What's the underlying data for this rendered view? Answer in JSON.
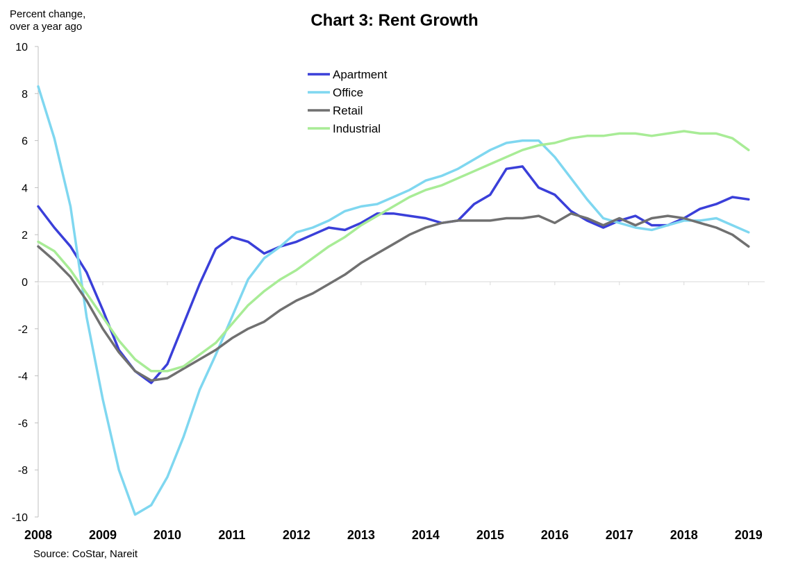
{
  "chart_data": {
    "type": "line",
    "title": "Chart 3: Rent Growth",
    "ylabel": "Percent change,\nover a year ago",
    "xlabel": "",
    "source": "Source: CoStar, Nareit",
    "ylim": [
      -10,
      10
    ],
    "yticks": [
      10,
      8,
      6,
      4,
      2,
      0,
      -2,
      -4,
      -6,
      -8,
      -10
    ],
    "x_range": [
      2008,
      2019.25
    ],
    "x_tick_labels": [
      "2008",
      "2009",
      "2010",
      "2011",
      "2012",
      "2013",
      "2014",
      "2015",
      "2016",
      "2017",
      "2018",
      "2019"
    ],
    "legend_position": "top-center",
    "grid": false,
    "x": [
      2008.0,
      2008.25,
      2008.5,
      2008.75,
      2009.0,
      2009.25,
      2009.5,
      2009.75,
      2010.0,
      2010.25,
      2010.5,
      2010.75,
      2011.0,
      2011.25,
      2011.5,
      2011.75,
      2012.0,
      2012.25,
      2012.5,
      2012.75,
      2013.0,
      2013.25,
      2013.5,
      2013.75,
      2014.0,
      2014.25,
      2014.5,
      2014.75,
      2015.0,
      2015.25,
      2015.5,
      2015.75,
      2016.0,
      2016.25,
      2016.5,
      2016.75,
      2017.0,
      2017.25,
      2017.5,
      2017.75,
      2018.0,
      2018.25,
      2018.5,
      2018.75,
      2019.0,
      2019.25
    ],
    "series": [
      {
        "name": "Apartment",
        "color": "#3a3fd9",
        "values": [
          3.2,
          2.3,
          1.5,
          0.4,
          -1.2,
          -2.9,
          -3.8,
          -4.3,
          -3.5,
          -1.8,
          -0.1,
          1.4,
          1.9,
          1.7,
          1.2,
          1.5,
          1.7,
          2.0,
          2.3,
          2.2,
          2.5,
          2.9,
          2.9,
          2.8,
          2.7,
          2.5,
          2.6,
          3.3,
          3.7,
          4.8,
          4.9,
          4.0,
          3.7,
          3.0,
          2.6,
          2.3,
          2.6,
          2.8,
          2.4,
          2.4,
          2.7,
          3.1,
          3.3,
          3.6,
          3.5,
          null
        ]
      },
      {
        "name": "Office",
        "color": "#7fd7f0",
        "values": [
          8.3,
          6.1,
          3.2,
          -1.5,
          -5.0,
          -8.0,
          -9.9,
          -9.5,
          -8.3,
          -6.6,
          -4.6,
          -3.1,
          -1.5,
          0.1,
          1.0,
          1.5,
          2.1,
          2.3,
          2.6,
          3.0,
          3.2,
          3.3,
          3.6,
          3.9,
          4.3,
          4.5,
          4.8,
          5.2,
          5.6,
          5.9,
          6.0,
          6.0,
          5.3,
          4.4,
          3.5,
          2.7,
          2.5,
          2.3,
          2.2,
          2.4,
          2.6,
          2.6,
          2.7,
          2.4,
          2.1,
          null
        ]
      },
      {
        "name": "Retail",
        "color": "#707070",
        "values": [
          1.5,
          0.9,
          0.2,
          -0.8,
          -2.0,
          -3.0,
          -3.8,
          -4.2,
          -4.1,
          -3.7,
          -3.3,
          -2.9,
          -2.4,
          -2.0,
          -1.7,
          -1.2,
          -0.8,
          -0.5,
          -0.1,
          0.3,
          0.8,
          1.2,
          1.6,
          2.0,
          2.3,
          2.5,
          2.6,
          2.6,
          2.6,
          2.7,
          2.7,
          2.8,
          2.5,
          2.9,
          2.7,
          2.4,
          2.7,
          2.4,
          2.7,
          2.8,
          2.7,
          2.5,
          2.3,
          2.0,
          1.5,
          null
        ]
      },
      {
        "name": "Industrial",
        "color": "#a8ec96",
        "values": [
          1.7,
          1.3,
          0.5,
          -0.5,
          -1.5,
          -2.5,
          -3.3,
          -3.8,
          -3.8,
          -3.6,
          -3.1,
          -2.6,
          -1.8,
          -1.0,
          -0.4,
          0.1,
          0.5,
          1.0,
          1.5,
          1.9,
          2.4,
          2.8,
          3.2,
          3.6,
          3.9,
          4.1,
          4.4,
          4.7,
          5.0,
          5.3,
          5.6,
          5.8,
          5.9,
          6.1,
          6.2,
          6.2,
          6.3,
          6.3,
          6.2,
          6.3,
          6.4,
          6.3,
          6.3,
          6.1,
          5.6,
          null
        ]
      }
    ]
  }
}
